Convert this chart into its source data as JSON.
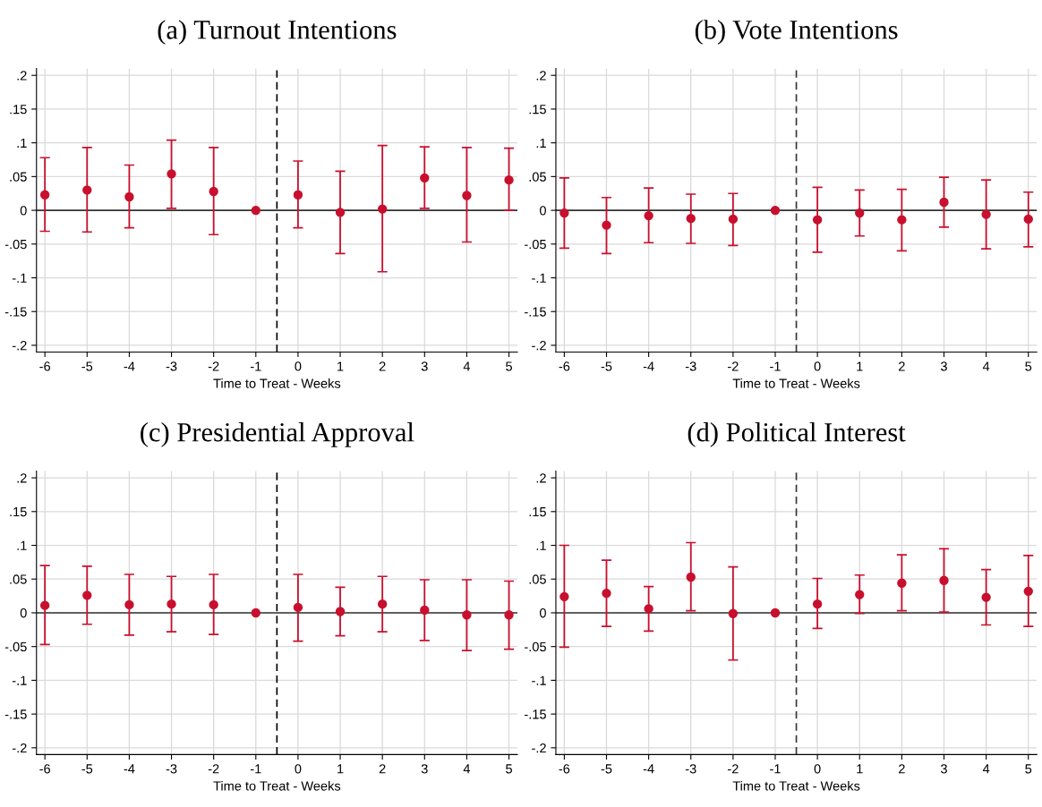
{
  "chart_data": [
    {
      "type": "scatter",
      "title": "(a) Turnout Intentions",
      "xlabel": "Time to Treat - Weeks",
      "x": [
        -6,
        -5,
        -4,
        -3,
        -2,
        -1,
        0,
        1,
        2,
        3,
        4,
        5
      ],
      "series": [
        {
          "color": "#c8102e",
          "values": [
            0.023,
            0.03,
            0.02,
            0.054,
            0.028,
            0,
            0.023,
            -0.003,
            0.002,
            0.048,
            0.022,
            0.045
          ],
          "errors": [
            [
              -0.031,
              0.078
            ],
            [
              -0.032,
              0.093
            ],
            [
              -0.026,
              0.067
            ],
            [
              0.003,
              0.104
            ],
            [
              -0.036,
              0.093
            ],
            null,
            [
              -0.026,
              0.073
            ],
            [
              -0.064,
              0.058
            ],
            [
              -0.091,
              0.096
            ],
            [
              0.003,
              0.094
            ],
            [
              -0.047,
              0.093
            ],
            [
              0.0,
              0.092
            ]
          ]
        }
      ],
      "xlim": [
        -6.2,
        5.2
      ],
      "xticks": [
        -6,
        -5,
        -4,
        -3,
        -2,
        -1,
        0,
        1,
        2,
        3,
        4,
        5
      ],
      "ylim": [
        -0.21,
        0.21
      ],
      "yticks": [
        {
          "value": 0.2,
          "label": ".2"
        },
        {
          "value": 0.15,
          "label": ".15"
        },
        {
          "value": 0.1,
          "label": ".1"
        },
        {
          "value": 0.05,
          "label": ".05"
        },
        0,
        {
          "value": -0.05,
          "label": "-.05"
        },
        {
          "value": -0.1,
          "label": "-.1"
        },
        {
          "value": -0.15,
          "label": "-.15"
        },
        {
          "value": -0.2,
          "label": "-.2"
        }
      ],
      "ref_lines": [
        {
          "axis": "x",
          "value": -0.5,
          "color": "#000000",
          "line_style": "dashed"
        },
        {
          "axis": "y",
          "value": 0,
          "color": "#333333",
          "line_style": "solid"
        }
      ],
      "grid": true,
      "marker": "circle"
    },
    {
      "type": "scatter",
      "title": "(b) Vote Intentions",
      "xlabel": "Time to Treat - Weeks",
      "x": [
        -6,
        -5,
        -4,
        -3,
        -2,
        -1,
        0,
        1,
        2,
        3,
        4,
        5
      ],
      "series": [
        {
          "color": "#c8102e",
          "values": [
            -0.004,
            -0.022,
            -0.008,
            -0.012,
            -0.013,
            0,
            -0.014,
            -0.004,
            -0.014,
            0.012,
            -0.006,
            -0.013
          ],
          "errors": [
            [
              -0.056,
              0.048
            ],
            [
              -0.064,
              0.019
            ],
            [
              -0.048,
              0.033
            ],
            [
              -0.049,
              0.024
            ],
            [
              -0.052,
              0.025
            ],
            null,
            [
              -0.062,
              0.034
            ],
            [
              -0.038,
              0.03
            ],
            [
              -0.06,
              0.031
            ],
            [
              -0.025,
              0.049
            ],
            [
              -0.057,
              0.045
            ],
            [
              -0.054,
              0.027
            ]
          ]
        }
      ],
      "xlim": [
        -6.2,
        5.2
      ],
      "xticks": [
        -6,
        -5,
        -4,
        -3,
        -2,
        -1,
        0,
        1,
        2,
        3,
        4,
        5
      ],
      "ylim": [
        -0.21,
        0.21
      ],
      "yticks": [
        {
          "value": 0.2,
          "label": ".2"
        },
        {
          "value": 0.15,
          "label": ".15"
        },
        {
          "value": 0.1,
          "label": ".1"
        },
        {
          "value": 0.05,
          "label": ".05"
        },
        0,
        {
          "value": -0.05,
          "label": "-.05"
        },
        {
          "value": -0.1,
          "label": "-.1"
        },
        {
          "value": -0.15,
          "label": "-.15"
        },
        {
          "value": -0.2,
          "label": "-.2"
        }
      ],
      "ref_lines": [
        {
          "axis": "x",
          "value": -0.5,
          "color": "#333333",
          "line_style": "dashed"
        },
        {
          "axis": "y",
          "value": 0,
          "color": "#333333",
          "line_style": "solid"
        }
      ],
      "grid": true,
      "marker": "circle"
    },
    {
      "type": "scatter",
      "title": "(c) Presidential Approval",
      "xlabel": "Time to Treat - Weeks",
      "x": [
        -6,
        -5,
        -4,
        -3,
        -2,
        -1,
        0,
        1,
        2,
        3,
        4,
        5
      ],
      "series": [
        {
          "color": "#c8102e",
          "values": [
            0.011,
            0.026,
            0.012,
            0.013,
            0.012,
            0,
            0.008,
            0.002,
            0.013,
            0.004,
            -0.003,
            -0.003
          ],
          "errors": [
            [
              -0.047,
              0.07
            ],
            [
              -0.017,
              0.069
            ],
            [
              -0.033,
              0.057
            ],
            [
              -0.028,
              0.054
            ],
            [
              -0.032,
              0.057
            ],
            null,
            [
              -0.042,
              0.057
            ],
            [
              -0.034,
              0.038
            ],
            [
              -0.028,
              0.054
            ],
            [
              -0.041,
              0.049
            ],
            [
              -0.056,
              0.049
            ],
            [
              -0.054,
              0.047
            ]
          ]
        }
      ],
      "xlim": [
        -6.2,
        5.2
      ],
      "xticks": [
        -6,
        -5,
        -4,
        -3,
        -2,
        -1,
        0,
        1,
        2,
        3,
        4,
        5
      ],
      "ylim": [
        -0.21,
        0.21
      ],
      "yticks": [
        {
          "value": 0.2,
          "label": ".2"
        },
        {
          "value": 0.15,
          "label": ".15"
        },
        {
          "value": 0.1,
          "label": ".1"
        },
        {
          "value": 0.05,
          "label": ".05"
        },
        0,
        {
          "value": -0.05,
          "label": "-.05"
        },
        {
          "value": -0.1,
          "label": "-.1"
        },
        {
          "value": -0.15,
          "label": "-.15"
        },
        {
          "value": -0.2,
          "label": "-.2"
        }
      ],
      "ref_lines": [
        {
          "axis": "x",
          "value": -0.5,
          "color": "#000000",
          "line_style": "dashed"
        },
        {
          "axis": "y",
          "value": 0,
          "color": "#333333",
          "line_style": "solid"
        }
      ],
      "grid": true,
      "marker": "circle"
    },
    {
      "type": "scatter",
      "title": "(d) Political Interest",
      "xlabel": "Time to Treat - Weeks",
      "x": [
        -6,
        -5,
        -4,
        -3,
        -2,
        -1,
        0,
        1,
        2,
        3,
        4,
        5
      ],
      "series": [
        {
          "color": "#c8102e",
          "values": [
            0.024,
            0.029,
            0.006,
            0.053,
            -0.001,
            0,
            0.013,
            0.027,
            0.044,
            0.048,
            0.023,
            0.032
          ],
          "errors": [
            [
              -0.051,
              0.1
            ],
            [
              -0.02,
              0.078
            ],
            [
              -0.027,
              0.039
            ],
            [
              0.003,
              0.104
            ],
            [
              -0.07,
              0.068
            ],
            null,
            [
              -0.023,
              0.051
            ],
            [
              -0.001,
              0.056
            ],
            [
              0.003,
              0.086
            ],
            [
              0.001,
              0.095
            ],
            [
              -0.018,
              0.064
            ],
            [
              -0.02,
              0.085
            ]
          ]
        }
      ],
      "xlim": [
        -6.2,
        5.2
      ],
      "xticks": [
        -6,
        -5,
        -4,
        -3,
        -2,
        -1,
        0,
        1,
        2,
        3,
        4,
        5
      ],
      "ylim": [
        -0.21,
        0.21
      ],
      "yticks": [
        {
          "value": 0.2,
          "label": ".2"
        },
        {
          "value": 0.15,
          "label": ".15"
        },
        {
          "value": 0.1,
          "label": ".1"
        },
        {
          "value": 0.05,
          "label": ".05"
        },
        0,
        {
          "value": -0.05,
          "label": "-.05"
        },
        {
          "value": -0.1,
          "label": "-.1"
        },
        {
          "value": -0.15,
          "label": "-.15"
        },
        {
          "value": -0.2,
          "label": "-.2"
        }
      ],
      "ref_lines": [
        {
          "axis": "x",
          "value": -0.5,
          "color": "#333333",
          "line_style": "dashed"
        },
        {
          "axis": "y",
          "value": 0,
          "color": "#333333",
          "line_style": "solid"
        }
      ],
      "grid": true,
      "marker": "circle"
    }
  ]
}
